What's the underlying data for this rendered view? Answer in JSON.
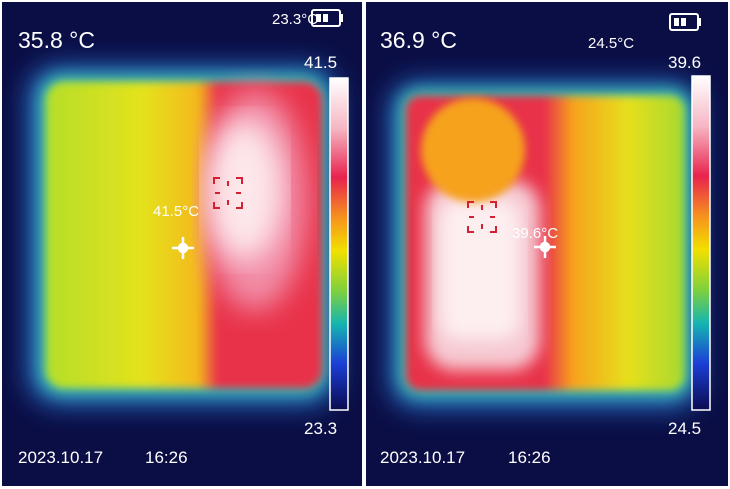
{
  "panels": [
    {
      "center_temp": "35.8 °C",
      "ambient_temp": "23.3°C",
      "scale_max": "41.5",
      "scale_min": "23.3",
      "hotspot_label": "41.5°C",
      "date": "2023.10.17",
      "time": "16:26"
    },
    {
      "center_temp": "36.9 °C",
      "ambient_temp": "24.5°C",
      "scale_max": "39.6",
      "scale_min": "24.5",
      "hotspot_label": "39.6°C",
      "date": "2023.10.17",
      "time": "16:26"
    }
  ]
}
